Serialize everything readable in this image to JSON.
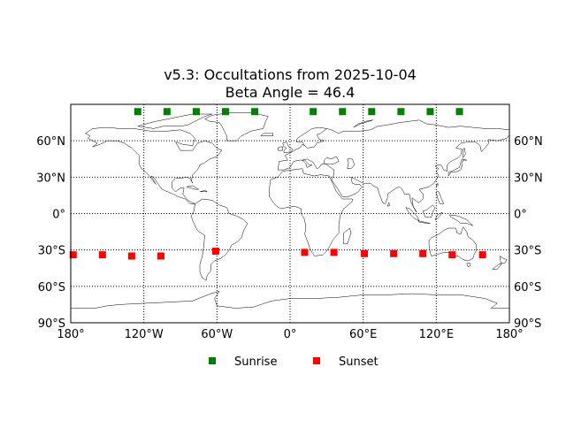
{
  "title_line1": "v5.3: Occultations from 2025-10-04",
  "title_line2": "Beta Angle = 46.4",
  "chart_data": {
    "type": "scatter",
    "projection": "equirectangular",
    "xlim": [
      -180,
      180
    ],
    "ylim": [
      -90,
      90
    ],
    "grid": true,
    "legend_placement": "bottom-center",
    "x_ticks": [
      {
        "value": -180,
        "label": "180°"
      },
      {
        "value": -120,
        "label": "120°W"
      },
      {
        "value": -60,
        "label": "60°W"
      },
      {
        "value": 0,
        "label": "0°"
      },
      {
        "value": 60,
        "label": "60°E"
      },
      {
        "value": 120,
        "label": "120°E"
      },
      {
        "value": 180,
        "label": "180°"
      }
    ],
    "y_ticks": [
      {
        "value": 60,
        "label": "60°N"
      },
      {
        "value": 30,
        "label": "30°N"
      },
      {
        "value": 0,
        "label": "0°"
      },
      {
        "value": -30,
        "label": "30°S"
      },
      {
        "value": -60,
        "label": "60°S"
      },
      {
        "value": -90,
        "label": "90°S"
      }
    ],
    "series": [
      {
        "name": "Sunrise",
        "color": "#008000",
        "marker": "square",
        "points": [
          {
            "lon": -125,
            "lat": 84
          },
          {
            "lon": -101,
            "lat": 84
          },
          {
            "lon": -77,
            "lat": 84
          },
          {
            "lon": -53,
            "lat": 84
          },
          {
            "lon": -29,
            "lat": 84
          },
          {
            "lon": 19,
            "lat": 84
          },
          {
            "lon": 43,
            "lat": 84
          },
          {
            "lon": 67,
            "lat": 84
          },
          {
            "lon": 91,
            "lat": 84
          },
          {
            "lon": 115,
            "lat": 84
          },
          {
            "lon": 139,
            "lat": 84
          }
        ]
      },
      {
        "name": "Sunset",
        "color": "#ff0000",
        "marker": "square",
        "points": [
          {
            "lon": -178,
            "lat": -34
          },
          {
            "lon": -154,
            "lat": -34
          },
          {
            "lon": -130,
            "lat": -35
          },
          {
            "lon": -106,
            "lat": -35
          },
          {
            "lon": -61,
            "lat": -31
          },
          {
            "lon": 12,
            "lat": -32
          },
          {
            "lon": 36,
            "lat": -32
          },
          {
            "lon": 61,
            "lat": -33
          },
          {
            "lon": 85,
            "lat": -33
          },
          {
            "lon": 109,
            "lat": -33
          },
          {
            "lon": 133,
            "lat": -34
          },
          {
            "lon": 158,
            "lat": -34
          }
        ]
      }
    ]
  }
}
